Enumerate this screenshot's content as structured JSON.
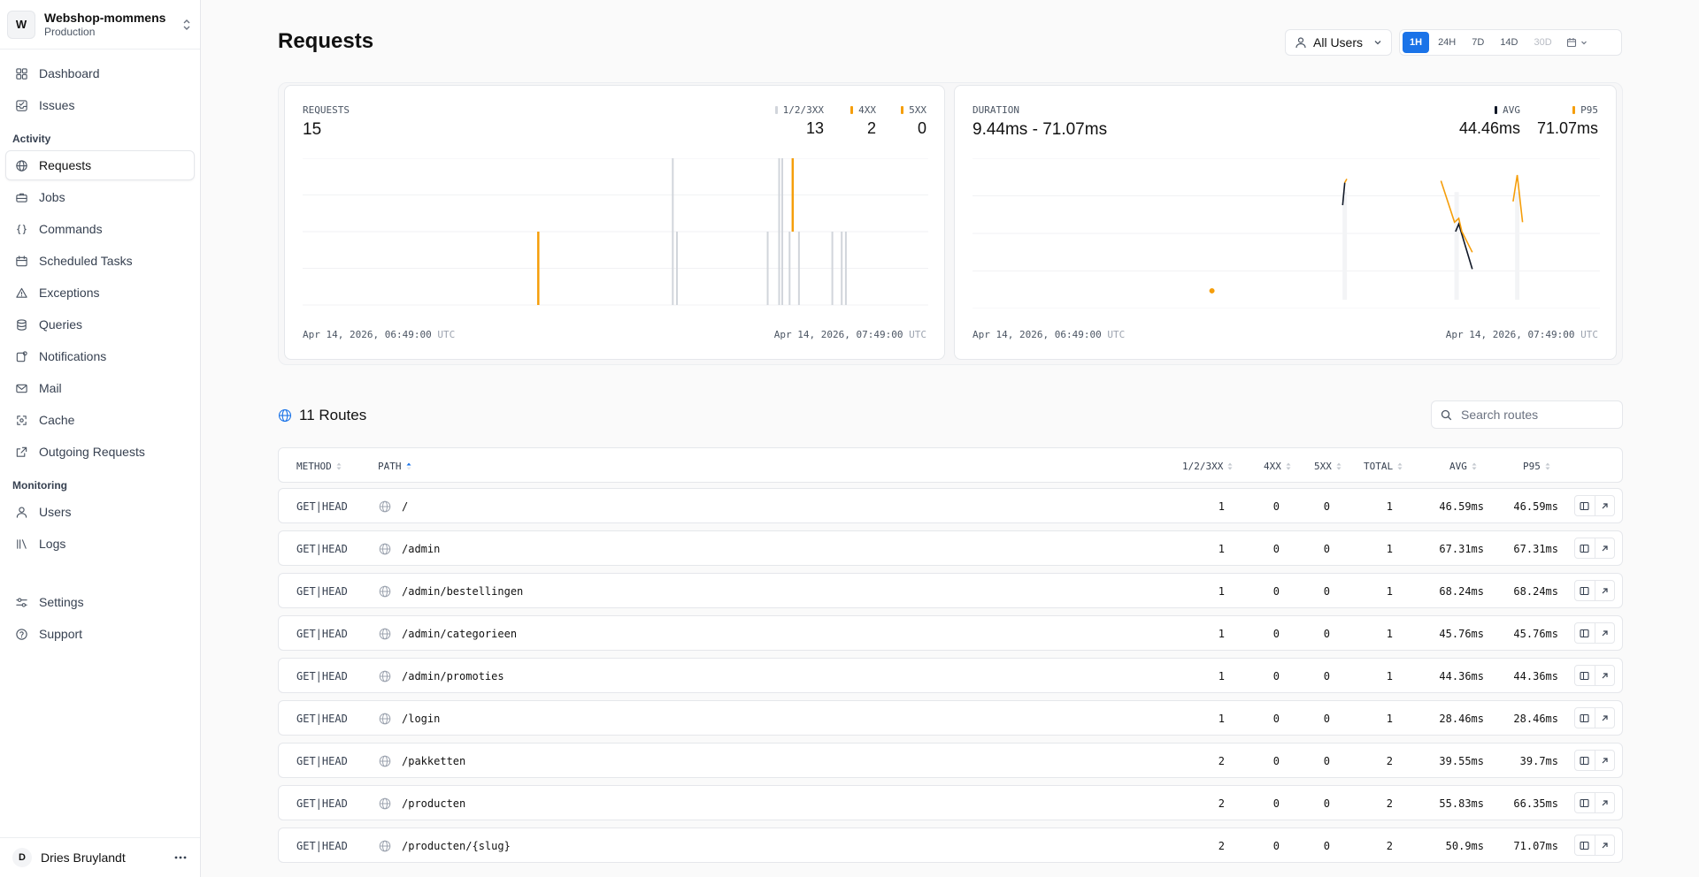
{
  "team": {
    "initial": "W",
    "name": "Webshop-mommens",
    "environment": "Production"
  },
  "nav": {
    "top": [
      {
        "key": "dashboard",
        "label": "Dashboard",
        "icon": "grid-icon"
      },
      {
        "key": "issues",
        "label": "Issues",
        "icon": "inbox-check-icon"
      }
    ],
    "activity_label": "Activity",
    "activity": [
      {
        "key": "requests",
        "label": "Requests",
        "icon": "globe-icon",
        "active": true
      },
      {
        "key": "jobs",
        "label": "Jobs",
        "icon": "briefcase-icon"
      },
      {
        "key": "commands",
        "label": "Commands",
        "icon": "code-braces-icon"
      },
      {
        "key": "scheduled-tasks",
        "label": "Scheduled Tasks",
        "icon": "calendar-icon"
      },
      {
        "key": "exceptions",
        "label": "Exceptions",
        "icon": "warning-icon"
      },
      {
        "key": "queries",
        "label": "Queries",
        "icon": "database-icon"
      },
      {
        "key": "notifications",
        "label": "Notifications",
        "icon": "bell-icon"
      },
      {
        "key": "mail",
        "label": "Mail",
        "icon": "mail-icon"
      },
      {
        "key": "cache",
        "label": "Cache",
        "icon": "cache-icon"
      },
      {
        "key": "outgoing-requests",
        "label": "Outgoing Requests",
        "icon": "external-link-icon"
      }
    ],
    "monitoring_label": "Monitoring",
    "monitoring": [
      {
        "key": "users",
        "label": "Users",
        "icon": "user-icon"
      },
      {
        "key": "logs",
        "label": "Logs",
        "icon": "logs-icon"
      }
    ],
    "bottom": [
      {
        "key": "settings",
        "label": "Settings",
        "icon": "sliders-icon"
      },
      {
        "key": "support",
        "label": "Support",
        "icon": "help-circle-icon"
      }
    ]
  },
  "user": {
    "initial": "D",
    "name": "Dries Bruylandt"
  },
  "header": {
    "title": "Requests",
    "user_filter": "All Users",
    "periods": [
      {
        "label": "1H",
        "state": "active"
      },
      {
        "label": "24H",
        "state": "normal"
      },
      {
        "label": "7D",
        "state": "normal"
      },
      {
        "label": "14D",
        "state": "normal"
      },
      {
        "label": "30D",
        "state": "disabled"
      }
    ]
  },
  "requests_card": {
    "label": "REQUESTS",
    "value": "15",
    "legend": [
      {
        "label": "1/2/3XX",
        "value": "13",
        "color": "#d1d5db"
      },
      {
        "label": "4XX",
        "value": "2",
        "color": "#f59e0b"
      },
      {
        "label": "5XX",
        "value": "0",
        "color": "#f59e0b"
      }
    ],
    "start": "Apr 14, 2026, 06:49:00",
    "end": "Apr 14, 2026, 07:49:00",
    "tz": "UTC"
  },
  "duration_card": {
    "label": "DURATION",
    "value": "9.44ms - 71.07ms",
    "legend": [
      {
        "label": "AVG",
        "value": "44.46ms",
        "color": "#111827"
      },
      {
        "label": "P95",
        "value": "71.07ms",
        "color": "#f59e0b"
      }
    ],
    "start": "Apr 14, 2026, 06:49:00",
    "end": "Apr 14, 2026, 07:49:00",
    "tz": "UTC"
  },
  "chart_data": [
    {
      "type": "bar",
      "title": "REQUESTS",
      "x_unit": "minutes since 06:49 UTC",
      "xlim": [
        0,
        60
      ],
      "ylim": [
        0,
        2
      ],
      "grid": true,
      "series": [
        {
          "name": "1/2/3XX",
          "color": "#d1d5db",
          "points": [
            [
              35.5,
              2
            ],
            [
              35.9,
              1
            ],
            [
              44.6,
              1
            ],
            [
              45.7,
              2
            ],
            [
              46.0,
              2
            ],
            [
              46.7,
              1
            ],
            [
              47.6,
              1
            ],
            [
              50.8,
              1
            ],
            [
              51.7,
              1
            ],
            [
              52.1,
              1
            ]
          ]
        },
        {
          "name": "4XX",
          "color": "#f59e0b",
          "points": [
            [
              22.6,
              1
            ],
            [
              47.0,
              1
            ]
          ]
        },
        {
          "name": "5XX",
          "color": "#f59e0b",
          "points": []
        }
      ]
    },
    {
      "type": "line",
      "title": "DURATION",
      "x_unit": "minutes since 06:49 UTC",
      "xlim": [
        0,
        60
      ],
      "ylim": [
        0,
        80
      ],
      "grid": true,
      "series": [
        {
          "name": "AVG",
          "color": "#111827",
          "points": [
            [
              35.4,
              55
            ],
            [
              35.6,
              67
            ],
            [
              46.2,
              41
            ],
            [
              46.5,
              45
            ],
            [
              47.8,
              21
            ]
          ]
        },
        {
          "name": "P95",
          "color": "#f59e0b",
          "points": [
            [
              22.9,
              9.44
            ],
            [
              35.6,
              67
            ],
            [
              35.8,
              69
            ],
            [
              44.8,
              68
            ],
            [
              46.1,
              46
            ],
            [
              46.5,
              48
            ],
            [
              46.8,
              41
            ],
            [
              47.8,
              30
            ],
            [
              51.7,
              57
            ],
            [
              52.1,
              71.07
            ],
            [
              52.6,
              46
            ]
          ]
        }
      ]
    }
  ],
  "routes": {
    "title": "11 Routes",
    "search_placeholder": "Search routes",
    "columns": {
      "method": "METHOD",
      "path": "PATH",
      "ok": "1/2/3XX",
      "c4xx": "4XX",
      "c5xx": "5XX",
      "total": "TOTAL",
      "avg": "AVG",
      "p95": "P95"
    },
    "rows": [
      {
        "method": "GET|HEAD",
        "path": "/",
        "ok": "1",
        "c4xx": "0",
        "c5xx": "0",
        "total": "1",
        "avg": "46.59ms",
        "p95": "46.59ms"
      },
      {
        "method": "GET|HEAD",
        "path": "/admin",
        "ok": "1",
        "c4xx": "0",
        "c5xx": "0",
        "total": "1",
        "avg": "67.31ms",
        "p95": "67.31ms"
      },
      {
        "method": "GET|HEAD",
        "path": "/admin/bestellingen",
        "ok": "1",
        "c4xx": "0",
        "c5xx": "0",
        "total": "1",
        "avg": "68.24ms",
        "p95": "68.24ms"
      },
      {
        "method": "GET|HEAD",
        "path": "/admin/categorieen",
        "ok": "1",
        "c4xx": "0",
        "c5xx": "0",
        "total": "1",
        "avg": "45.76ms",
        "p95": "45.76ms"
      },
      {
        "method": "GET|HEAD",
        "path": "/admin/promoties",
        "ok": "1",
        "c4xx": "0",
        "c5xx": "0",
        "total": "1",
        "avg": "44.36ms",
        "p95": "44.36ms"
      },
      {
        "method": "GET|HEAD",
        "path": "/login",
        "ok": "1",
        "c4xx": "0",
        "c5xx": "0",
        "total": "1",
        "avg": "28.46ms",
        "p95": "28.46ms"
      },
      {
        "method": "GET|HEAD",
        "path": "/pakketten",
        "ok": "2",
        "c4xx": "0",
        "c5xx": "0",
        "total": "2",
        "avg": "39.55ms",
        "p95": "39.7ms"
      },
      {
        "method": "GET|HEAD",
        "path": "/producten",
        "ok": "2",
        "c4xx": "0",
        "c5xx": "0",
        "total": "2",
        "avg": "55.83ms",
        "p95": "66.35ms"
      },
      {
        "method": "GET|HEAD",
        "path": "/producten/{slug}",
        "ok": "2",
        "c4xx": "0",
        "c5xx": "0",
        "total": "2",
        "avg": "50.9ms",
        "p95": "71.07ms"
      }
    ]
  }
}
